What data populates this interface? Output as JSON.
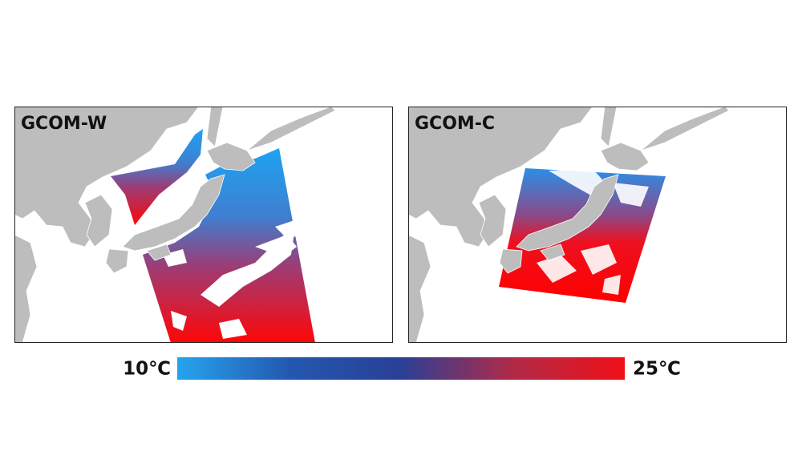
{
  "panels": [
    {
      "label": "GCOM-W"
    },
    {
      "label": "GCOM-C"
    }
  ],
  "colorbar": {
    "min_label": "10℃",
    "max_label": "25℃",
    "colors": [
      "#26a4ee",
      "#2458b0",
      "#2a3f96",
      "#b02a48",
      "#f01018"
    ]
  }
}
